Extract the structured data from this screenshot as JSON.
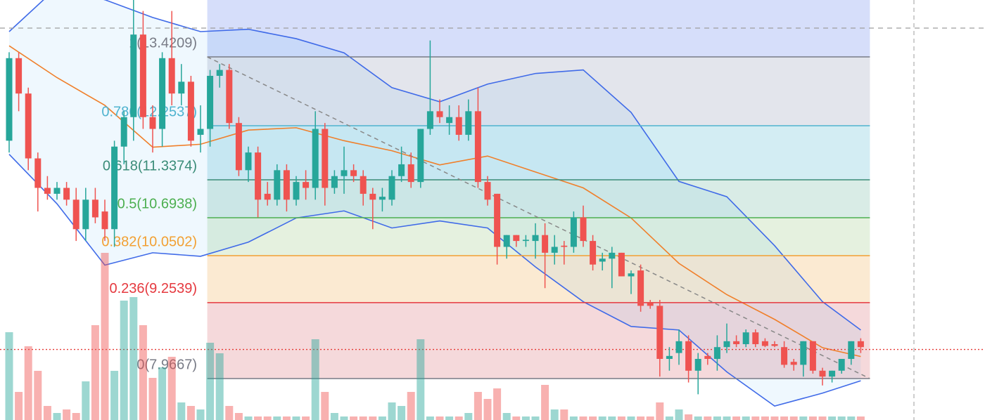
{
  "chart_data": {
    "type": "candlestick",
    "ylim": [
      7.264,
      14.386
    ],
    "colors": {
      "up": "#26a69a",
      "down": "#ef5350",
      "band": "#3f6ae8",
      "band_fill": "#2196f3",
      "middle": "#f07f2a",
      "trend": "#888888"
    },
    "candles": [
      [
        12.0,
        13.5,
        11.8,
        13.4
      ],
      [
        13.4,
        13.5,
        12.5,
        12.8
      ],
      [
        12.8,
        12.9,
        11.5,
        11.7
      ],
      [
        11.7,
        11.8,
        10.8,
        11.2
      ],
      [
        11.2,
        11.4,
        11.0,
        11.1
      ],
      [
        11.1,
        11.3,
        11.0,
        11.2
      ],
      [
        11.2,
        11.3,
        10.9,
        11.0
      ],
      [
        11.0,
        11.2,
        10.3,
        10.5
      ],
      [
        10.5,
        11.2,
        10.3,
        11.0
      ],
      [
        11.0,
        11.2,
        10.6,
        10.7
      ],
      [
        10.8,
        11.0,
        10.3,
        10.5
      ],
      [
        10.5,
        12.0,
        10.2,
        11.9
      ],
      [
        11.9,
        12.5,
        11.6,
        12.4
      ],
      [
        12.4,
        14.4,
        12.0,
        13.8
      ],
      [
        13.8,
        14.2,
        12.2,
        12.4
      ],
      [
        12.4,
        12.6,
        11.8,
        12.2
      ],
      [
        12.2,
        13.5,
        11.9,
        13.4
      ],
      [
        13.4,
        14.2,
        12.6,
        12.8
      ],
      [
        12.8,
        13.3,
        12.6,
        13.0
      ],
      [
        13.0,
        13.1,
        11.9,
        12.0
      ],
      [
        12.1,
        12.6,
        11.8,
        12.2
      ],
      [
        12.2,
        13.2,
        11.9,
        13.1
      ],
      [
        13.1,
        13.3,
        12.9,
        13.2
      ],
      [
        13.2,
        13.3,
        12.2,
        12.3
      ],
      [
        12.3,
        12.4,
        11.4,
        11.5
      ],
      [
        11.5,
        11.9,
        11.3,
        11.8
      ],
      [
        11.8,
        11.9,
        10.7,
        11.0
      ],
      [
        11.1,
        11.3,
        10.9,
        11.0
      ],
      [
        11.0,
        11.6,
        10.9,
        11.5
      ],
      [
        11.5,
        11.6,
        10.8,
        11.0
      ],
      [
        11.0,
        11.4,
        10.9,
        11.3
      ],
      [
        11.3,
        11.5,
        11.0,
        11.2
      ],
      [
        11.2,
        12.5,
        11.0,
        12.2
      ],
      [
        12.2,
        12.3,
        10.9,
        11.2
      ],
      [
        11.2,
        11.5,
        11.1,
        11.4
      ],
      [
        11.4,
        11.9,
        11.1,
        11.5
      ],
      [
        11.5,
        11.6,
        11.3,
        11.4
      ],
      [
        11.4,
        11.5,
        10.9,
        11.1
      ],
      [
        11.1,
        11.2,
        10.5,
        11.0
      ],
      [
        11.0,
        11.2,
        10.8,
        11.05
      ],
      [
        11.0,
        11.5,
        10.9,
        11.4
      ],
      [
        11.4,
        11.9,
        11.3,
        11.6
      ],
      [
        11.6,
        11.8,
        11.2,
        11.3
      ],
      [
        11.3,
        12.2,
        11.2,
        12.2
      ],
      [
        12.2,
        13.7,
        12.1,
        12.5
      ],
      [
        12.5,
        12.7,
        12.3,
        12.4
      ],
      [
        12.3,
        12.6,
        12.1,
        12.4
      ],
      [
        12.4,
        12.6,
        12.0,
        12.1
      ],
      [
        12.1,
        12.7,
        12.0,
        12.5
      ],
      [
        12.5,
        12.9,
        11.2,
        11.3
      ],
      [
        11.3,
        11.4,
        10.9,
        11.0
      ],
      [
        11.1,
        11.1,
        9.9,
        10.2
      ],
      [
        10.2,
        10.4,
        10.0,
        10.4
      ],
      [
        10.4,
        10.4,
        10.2,
        10.3
      ],
      [
        10.3,
        10.4,
        10.2,
        10.32
      ],
      [
        10.3,
        10.6,
        10.0,
        10.4
      ],
      [
        10.4,
        10.6,
        9.5,
        10.1
      ],
      [
        10.1,
        10.4,
        9.9,
        10.2
      ],
      [
        10.22,
        10.3,
        9.9,
        10.2
      ],
      [
        10.2,
        10.8,
        10.1,
        10.7
      ],
      [
        10.7,
        10.9,
        10.2,
        10.3
      ],
      [
        10.3,
        10.4,
        9.8,
        9.9
      ],
      [
        9.95,
        10.1,
        9.8,
        10.0
      ],
      [
        10.0,
        10.2,
        9.5,
        10.1
      ],
      [
        10.1,
        10.1,
        9.7,
        9.7
      ],
      [
        9.7,
        9.8,
        9.4,
        9.75
      ],
      [
        9.8,
        9.9,
        9.1,
        9.2
      ],
      [
        9.25,
        9.3,
        9.15,
        9.2
      ],
      [
        9.2,
        9.3,
        8.0,
        8.3
      ],
      [
        8.3,
        8.5,
        8.1,
        8.35
      ],
      [
        8.4,
        8.8,
        8.2,
        8.6
      ],
      [
        8.6,
        8.7,
        7.9,
        8.1
      ],
      [
        8.1,
        8.4,
        7.7,
        8.3
      ],
      [
        8.35,
        8.4,
        8.2,
        8.3
      ],
      [
        8.3,
        8.7,
        8.1,
        8.5
      ],
      [
        8.5,
        8.9,
        8.4,
        8.6
      ],
      [
        8.6,
        8.7,
        8.5,
        8.55
      ],
      [
        8.55,
        8.8,
        8.5,
        8.75
      ],
      [
        8.75,
        8.8,
        8.5,
        8.55
      ],
      [
        8.6,
        8.65,
        8.5,
        8.52
      ],
      [
        8.55,
        8.6,
        8.5,
        8.52
      ],
      [
        8.5,
        8.6,
        8.15,
        8.2
      ],
      [
        8.25,
        8.3,
        8.1,
        8.2
      ],
      [
        8.2,
        8.6,
        8.0,
        8.6
      ],
      [
        8.6,
        8.6,
        8.05,
        8.1
      ],
      [
        8.1,
        8.15,
        7.85,
        8.0
      ],
      [
        8.0,
        8.1,
        7.9,
        8.1
      ],
      [
        8.1,
        8.3,
        8.05,
        8.3
      ],
      [
        8.3,
        8.6,
        8.2,
        8.6
      ],
      [
        8.6,
        8.65,
        8.4,
        8.5
      ]
    ],
    "volume": [
      125,
      40,
      105,
      70,
      20,
      10,
      15,
      10,
      55,
      135,
      238,
      70,
      170,
      175,
      135,
      60,
      75,
      90,
      25,
      20,
      15,
      110,
      95,
      20,
      10,
      5,
      5,
      5,
      5,
      5,
      5,
      5,
      115,
      40,
      10,
      5,
      5,
      5,
      5,
      5,
      25,
      20,
      40,
      115,
      5,
      5,
      5,
      5,
      10,
      40,
      30,
      45,
      10,
      5,
      5,
      5,
      50,
      15,
      15,
      5,
      5,
      5,
      5,
      5,
      5,
      5,
      5,
      5,
      25,
      5,
      15,
      8,
      5,
      5,
      5,
      5,
      5,
      5,
      5,
      5,
      5,
      5,
      5,
      5,
      5,
      5,
      5,
      5,
      5,
      5
    ],
    "volume_lim": [
      0,
      250
    ],
    "bands": {
      "index": [
        0,
        5,
        10,
        15,
        20,
        25,
        30,
        35,
        40,
        45,
        50,
        55,
        60,
        65,
        70,
        75,
        80,
        85,
        89
      ],
      "upper": [
        13.85,
        14.6,
        14.39,
        14.09,
        13.85,
        13.89,
        13.73,
        13.49,
        12.9,
        12.66,
        12.96,
        13.14,
        13.2,
        12.48,
        11.31,
        11.05,
        10.22,
        9.27,
        8.79
      ],
      "middle": [
        13.61,
        13.07,
        12.6,
        11.89,
        11.94,
        12.18,
        12.22,
        12.0,
        11.83,
        11.59,
        11.74,
        11.47,
        11.2,
        10.69,
        9.92,
        9.39,
        8.97,
        8.49,
        8.34
      ],
      "lower": [
        11.77,
        10.93,
        9.89,
        10.1,
        10.04,
        10.28,
        10.69,
        10.81,
        10.52,
        10.64,
        10.52,
        9.86,
        9.27,
        8.85,
        8.79,
        8.08,
        7.5,
        7.72,
        7.93
      ]
    },
    "fib_range": [
      21,
      89
    ],
    "fib_above_color": "#d6defa",
    "fib_levels": [
      {
        "label": "1(13.4209)",
        "value": 13.4209,
        "color": "#787b86",
        "fill": "#e3e5ec"
      },
      {
        "label": "0.786(12.2537)",
        "value": 12.2537,
        "color": "#4fb3cf",
        "fill": "#d3edf3"
      },
      {
        "label": "0.618(11.3374)",
        "value": 11.3374,
        "color": "#3a8c78",
        "fill": "#d9ece6"
      },
      {
        "label": "0.5(10.6938)",
        "value": 10.6938,
        "color": "#4caf50",
        "fill": "#e5f1df"
      },
      {
        "label": "0.382(10.0502)",
        "value": 10.0502,
        "color": "#f2a033",
        "fill": "#fbead2"
      },
      {
        "label": "0.236(9.2539)",
        "value": 9.2539,
        "color": "#e5393f",
        "fill": "#f5d9db"
      },
      {
        "label": "0(7.9667)",
        "value": 7.9667,
        "color": "#787b86"
      }
    ],
    "reference_lines": [
      {
        "value": 13.91,
        "color": "#9e9e9e",
        "style": "dashed"
      },
      {
        "value": 8.46,
        "color": "#e53935",
        "style": "dotted"
      }
    ]
  }
}
